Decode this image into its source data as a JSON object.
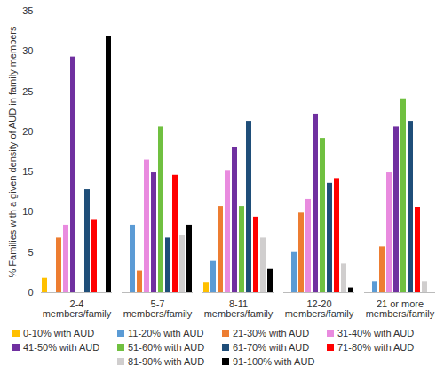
{
  "chart_data": {
    "type": "bar",
    "categories": [
      "2-4 members/family",
      "5-7 members/family",
      "8-11 members/family",
      "12-20 members/family",
      "21 or more members/family"
    ],
    "y_label": "% Families with a given density of AUD in family members",
    "ylim": [
      0,
      35
    ],
    "yticks": [
      0,
      5,
      10,
      15,
      20,
      25,
      30,
      35
    ],
    "grid": false,
    "legend": "bottom",
    "series": [
      {
        "name": "0-10% with AUD",
        "color": "#FFC000",
        "values": [
          1.8,
          0,
          1.3,
          0,
          0
        ]
      },
      {
        "name": "11-20% with AUD",
        "color": "#5B9BD5",
        "values": [
          0,
          8.4,
          3.9,
          5.0,
          1.4
        ]
      },
      {
        "name": "21-30% with AUD",
        "color": "#ED7D31",
        "values": [
          6.8,
          2.7,
          10.7,
          9.9,
          5.7
        ]
      },
      {
        "name": "31-40% with AUD",
        "color": "#E98BDF",
        "values": [
          8.4,
          16.5,
          15.2,
          11.6,
          14.9
        ]
      },
      {
        "name": "41-50% with AUD",
        "color": "#7030A0",
        "values": [
          29.3,
          14.9,
          18.1,
          22.2,
          20.6
        ]
      },
      {
        "name": "51-60% with AUD",
        "color": "#70C040",
        "values": [
          0,
          20.6,
          10.7,
          19.2,
          24.1
        ]
      },
      {
        "name": "61-70% with AUD",
        "color": "#1F4E79",
        "values": [
          12.8,
          6.8,
          21.3,
          13.6,
          21.3
        ]
      },
      {
        "name": "71-80% with AUD",
        "color": "#FF0000",
        "values": [
          9.0,
          14.6,
          9.4,
          14.2,
          10.6
        ]
      },
      {
        "name": "81-90% with AUD",
        "color": "#D0CECE",
        "values": [
          0,
          7.1,
          6.8,
          3.6,
          1.4
        ]
      },
      {
        "name": "91-100% with AUD",
        "color": "#000000",
        "values": [
          31.9,
          8.4,
          2.9,
          0.6,
          0
        ]
      }
    ]
  }
}
